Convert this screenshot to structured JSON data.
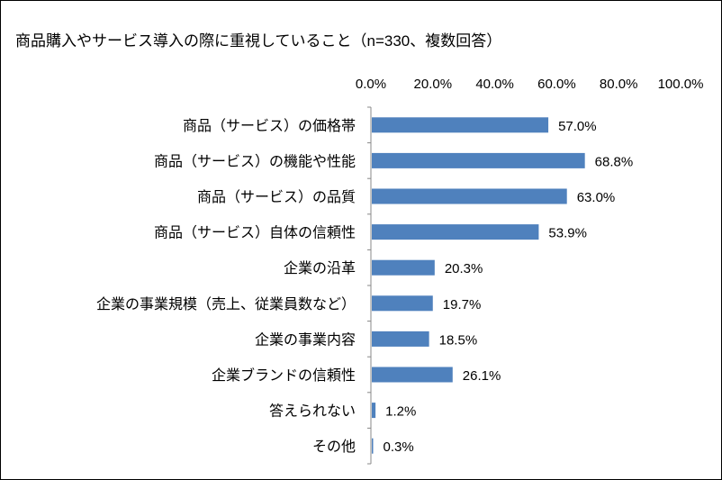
{
  "chart_data": {
    "type": "bar",
    "orientation": "horizontal",
    "title": "商品購入やサービス導入の際に重視していること（n=330、複数回答）",
    "categories": [
      "商品（サービス）の価格帯",
      "商品（サービス）の機能や性能",
      "商品（サービス）の品質",
      "商品（サービス）自体の信頼性",
      "企業の沿革",
      "企業の事業規模（売上、従業員数など）",
      "企業の事業内容",
      "企業ブランドの信頼性",
      "答えられない",
      "その他"
    ],
    "values": [
      57.0,
      68.8,
      63.0,
      53.9,
      20.3,
      19.7,
      18.5,
      26.1,
      1.2,
      0.3
    ],
    "value_labels": [
      "57.0%",
      "68.8%",
      "63.0%",
      "53.9%",
      "20.3%",
      "19.7%",
      "18.5%",
      "26.1%",
      "1.2%",
      "0.3%"
    ],
    "xlim": [
      0,
      100
    ],
    "x_ticks": [
      "0.0%",
      "20.0%",
      "40.0%",
      "60.0%",
      "80.0%",
      "100.0%"
    ],
    "x_axis_position": "top",
    "grid": false,
    "legend": "none",
    "bar_color": "#4F81BD"
  }
}
